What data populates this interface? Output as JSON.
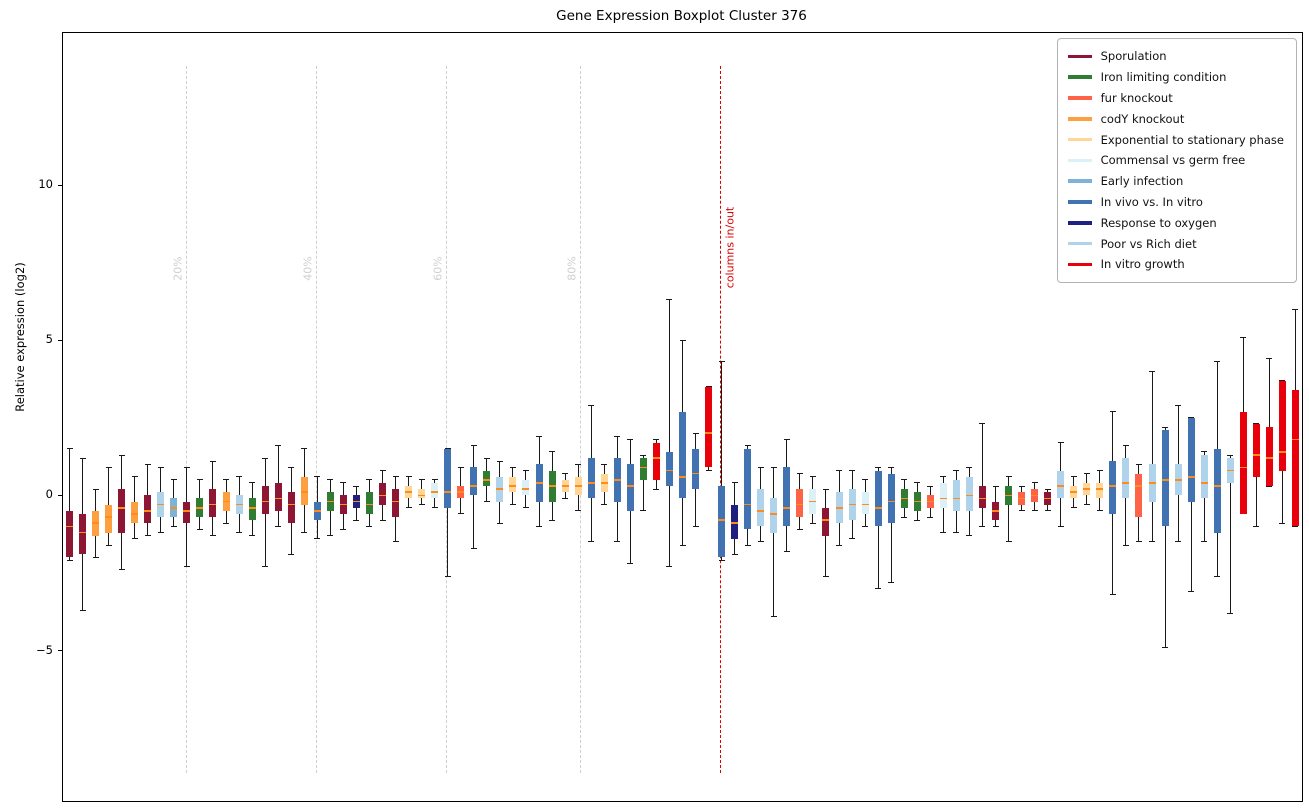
{
  "title": "Gene Expression Boxplot Cluster 376",
  "chart_data": {
    "type": "boxplot",
    "title": "Gene Expression Boxplot Cluster 376",
    "xlabel": "",
    "ylabel": "Relative expression (log2)",
    "ylim": [
      -9.85,
      14.9
    ],
    "yticks": [
      {
        "value": 10,
        "label": "10"
      },
      {
        "value": 5,
        "label": "5"
      },
      {
        "value": 0,
        "label": "0"
      },
      {
        "value": -5,
        "label": "−5"
      }
    ],
    "grid": false,
    "legend_position": "upper right",
    "median_color": "#ff8c1a",
    "groups": [
      {
        "name": "Sporulation",
        "color": "#8E1635"
      },
      {
        "name": "Iron limiting condition",
        "color": "#2E7D32"
      },
      {
        "name": "fur knockout",
        "color": "#FF6347"
      },
      {
        "name": "codY knockout",
        "color": "#FFA040"
      },
      {
        "name": "Exponential to stationary phase",
        "color": "#FFD696"
      },
      {
        "name": "Commensal vs germ free",
        "color": "#DCF0F7"
      },
      {
        "name": "Early infection",
        "color": "#7FB3D5"
      },
      {
        "name": "In vivo vs. In vitro",
        "color": "#4173B3"
      },
      {
        "name": "Response to oxygen",
        "color": "#1F2080"
      },
      {
        "name": "Poor vs Rich diet",
        "color": "#AFD3EA"
      },
      {
        "name": "In vitro growth",
        "color": "#E8000B"
      }
    ],
    "percent_lines": [
      {
        "label": "20%",
        "frac": 0.099,
        "color": "#cfcfcf"
      },
      {
        "label": "40%",
        "frac": 0.204,
        "color": "#cfcfcf"
      },
      {
        "label": "60%",
        "frac": 0.309,
        "color": "#cfcfcf"
      },
      {
        "label": "80%",
        "frac": 0.417,
        "color": "#cfcfcf"
      }
    ],
    "marker_line": {
      "label": "columns in/out",
      "frac": 0.53,
      "color": "#dd0000"
    },
    "box_columns": [
      "group_index",
      "whisker_low",
      "q1",
      "median",
      "q3",
      "whisker_high"
    ],
    "boxes": [
      [
        0,
        -2.1,
        -2.0,
        -1.0,
        -0.5,
        1.5
      ],
      [
        0,
        -3.7,
        -1.9,
        -1.2,
        -0.6,
        1.2
      ],
      [
        3,
        -2.0,
        -1.3,
        -0.9,
        -0.5,
        0.2
      ],
      [
        3,
        -1.6,
        -1.2,
        -0.7,
        -0.3,
        0.9
      ],
      [
        0,
        -2.4,
        -1.2,
        -0.4,
        0.2,
        1.3
      ],
      [
        3,
        -1.4,
        -0.9,
        -0.6,
        -0.2,
        0.6
      ],
      [
        0,
        -1.3,
        -0.9,
        -0.5,
        0.0,
        1.0
      ],
      [
        9,
        -1.2,
        -0.7,
        -0.3,
        0.1,
        0.9
      ],
      [
        6,
        -1.0,
        -0.7,
        -0.4,
        -0.1,
        0.5
      ],
      [
        0,
        -2.3,
        -0.9,
        -0.5,
        -0.2,
        0.9
      ],
      [
        1,
        -1.1,
        -0.7,
        -0.4,
        -0.1,
        0.5
      ],
      [
        0,
        -1.3,
        -0.7,
        -0.3,
        0.2,
        1.1
      ],
      [
        3,
        -0.9,
        -0.5,
        -0.2,
        0.1,
        0.5
      ],
      [
        9,
        -1.2,
        -0.6,
        -0.3,
        0.0,
        0.6
      ],
      [
        1,
        -1.3,
        -0.8,
        -0.4,
        -0.1,
        0.4
      ],
      [
        0,
        -2.3,
        -0.6,
        -0.2,
        0.3,
        1.2
      ],
      [
        0,
        -1.0,
        -0.5,
        -0.1,
        0.4,
        1.6
      ],
      [
        0,
        -1.9,
        -0.9,
        -0.3,
        0.1,
        0.9
      ],
      [
        3,
        -1.2,
        -0.3,
        0.1,
        0.6,
        1.5
      ],
      [
        7,
        -1.4,
        -0.8,
        -0.5,
        -0.2,
        0.6
      ],
      [
        1,
        -1.3,
        -0.5,
        -0.2,
        0.1,
        0.5
      ],
      [
        0,
        -1.1,
        -0.6,
        -0.3,
        0.0,
        0.4
      ],
      [
        8,
        -0.8,
        -0.4,
        -0.2,
        0.0,
        0.3
      ],
      [
        1,
        -1.0,
        -0.6,
        -0.3,
        0.1,
        0.5
      ],
      [
        0,
        -0.8,
        -0.3,
        0.0,
        0.4,
        0.8
      ],
      [
        0,
        -1.5,
        -0.7,
        -0.2,
        0.2,
        0.6
      ],
      [
        4,
        -0.4,
        -0.1,
        0.1,
        0.3,
        0.6
      ],
      [
        4,
        -0.3,
        -0.1,
        0.0,
        0.2,
        0.5
      ],
      [
        5,
        -0.4,
        -0.1,
        0.1,
        0.4,
        0.5
      ],
      [
        7,
        -2.6,
        -0.4,
        0.1,
        1.5,
        1.5
      ],
      [
        2,
        -0.6,
        -0.1,
        0.1,
        0.3,
        0.9
      ],
      [
        7,
        -1.7,
        0.0,
        0.3,
        0.9,
        1.6
      ],
      [
        1,
        -0.2,
        0.3,
        0.5,
        0.8,
        1.2
      ],
      [
        9,
        -0.9,
        -0.2,
        0.2,
        0.6,
        1.1
      ],
      [
        4,
        -0.3,
        0.1,
        0.3,
        0.6,
        0.9
      ],
      [
        5,
        -0.4,
        0.0,
        0.2,
        0.5,
        0.8
      ],
      [
        7,
        -1.0,
        -0.2,
        0.4,
        1.0,
        1.9
      ],
      [
        1,
        -0.8,
        -0.2,
        0.3,
        0.8,
        1.4
      ],
      [
        4,
        -0.1,
        0.1,
        0.3,
        0.5,
        0.7
      ],
      [
        4,
        -0.5,
        0.0,
        0.3,
        0.6,
        1.0
      ],
      [
        7,
        -1.5,
        -0.1,
        0.4,
        1.2,
        2.9
      ],
      [
        4,
        -0.3,
        0.1,
        0.4,
        0.7,
        1.0
      ],
      [
        7,
        -1.5,
        -0.2,
        0.5,
        1.2,
        1.9
      ],
      [
        7,
        -2.2,
        -0.5,
        0.3,
        1.0,
        1.8
      ],
      [
        1,
        -0.5,
        0.5,
        0.9,
        1.2,
        1.3
      ],
      [
        10,
        0.2,
        0.5,
        1.2,
        1.7,
        1.8
      ],
      [
        7,
        -2.3,
        0.3,
        0.8,
        1.4,
        6.3
      ],
      [
        7,
        -1.6,
        -0.1,
        0.6,
        2.7,
        5.0
      ],
      [
        7,
        -1.0,
        0.2,
        0.7,
        1.5,
        2.0
      ],
      [
        10,
        0.8,
        0.9,
        2.0,
        3.5,
        3.5
      ],
      [
        7,
        -2.1,
        -2.0,
        -0.8,
        0.3,
        4.3
      ],
      [
        8,
        -1.9,
        -1.4,
        -0.9,
        -0.3,
        0.4
      ],
      [
        7,
        -1.6,
        -1.1,
        -0.3,
        1.5,
        1.6
      ],
      [
        9,
        -1.5,
        -1.0,
        -0.5,
        0.2,
        0.9
      ],
      [
        9,
        -3.9,
        -1.2,
        -0.6,
        -0.1,
        0.9
      ],
      [
        7,
        -1.8,
        -1.0,
        -0.4,
        0.9,
        1.8
      ],
      [
        2,
        -1.1,
        -0.7,
        -0.3,
        0.2,
        0.7
      ],
      [
        5,
        -0.9,
        -0.6,
        -0.2,
        0.2,
        0.6
      ],
      [
        0,
        -2.6,
        -1.3,
        -0.8,
        -0.4,
        0.2
      ],
      [
        9,
        -1.6,
        -0.9,
        -0.4,
        0.1,
        0.8
      ],
      [
        9,
        -1.4,
        -0.8,
        -0.3,
        0.2,
        0.8
      ],
      [
        5,
        -1.0,
        -0.6,
        -0.3,
        0.1,
        0.5
      ],
      [
        7,
        -3.0,
        -1.0,
        -0.4,
        0.8,
        0.9
      ],
      [
        7,
        -2.8,
        -0.9,
        -0.2,
        0.7,
        0.9
      ],
      [
        1,
        -0.7,
        -0.4,
        -0.1,
        0.2,
        0.5
      ],
      [
        1,
        -0.8,
        -0.5,
        -0.2,
        0.1,
        0.4
      ],
      [
        2,
        -0.7,
        -0.4,
        -0.2,
        0.0,
        0.3
      ],
      [
        5,
        -1.2,
        -0.4,
        -0.1,
        0.4,
        0.6
      ],
      [
        9,
        -1.2,
        -0.5,
        -0.1,
        0.5,
        0.8
      ],
      [
        9,
        -1.3,
        -0.5,
        0.0,
        0.6,
        0.9
      ],
      [
        0,
        -1.0,
        -0.4,
        -0.1,
        0.3,
        2.3
      ],
      [
        0,
        -1.0,
        -0.8,
        -0.5,
        -0.2,
        0.3
      ],
      [
        1,
        -1.5,
        -0.3,
        0.0,
        0.3,
        0.6
      ],
      [
        2,
        -0.5,
        -0.3,
        -0.1,
        0.1,
        0.3
      ],
      [
        2,
        -0.5,
        -0.2,
        0.0,
        0.2,
        0.4
      ],
      [
        0,
        -0.5,
        -0.3,
        -0.1,
        0.1,
        0.2
      ],
      [
        9,
        -1.0,
        -0.1,
        0.3,
        0.8,
        1.7
      ],
      [
        4,
        -0.4,
        -0.1,
        0.1,
        0.3,
        0.6
      ],
      [
        4,
        -0.3,
        0.0,
        0.2,
        0.4,
        0.7
      ],
      [
        4,
        -0.5,
        -0.1,
        0.2,
        0.4,
        0.8
      ],
      [
        7,
        -3.2,
        -0.6,
        0.3,
        1.1,
        2.7
      ],
      [
        9,
        -1.6,
        -0.1,
        0.4,
        1.2,
        1.6
      ],
      [
        2,
        -1.5,
        -0.7,
        0.3,
        0.7,
        1.0
      ],
      [
        9,
        -1.5,
        -0.2,
        0.4,
        1.0,
        4.0
      ],
      [
        7,
        -4.9,
        -1.0,
        0.5,
        2.1,
        2.2
      ],
      [
        9,
        -1.5,
        0.0,
        0.5,
        1.0,
        2.9
      ],
      [
        7,
        -3.1,
        -0.2,
        0.6,
        2.5,
        2.5
      ],
      [
        9,
        -1.5,
        -0.1,
        0.4,
        1.3,
        1.4
      ],
      [
        7,
        -2.6,
        -1.2,
        0.3,
        1.5,
        4.3
      ],
      [
        9,
        -3.8,
        0.4,
        0.8,
        1.2,
        1.3
      ],
      [
        10,
        -0.6,
        -0.6,
        0.9,
        2.7,
        5.1
      ],
      [
        10,
        -1.0,
        0.6,
        1.3,
        2.3,
        2.3
      ],
      [
        10,
        0.3,
        0.3,
        1.2,
        2.2,
        4.4
      ],
      [
        10,
        -0.9,
        0.8,
        1.4,
        3.7,
        3.7
      ],
      [
        10,
        -1.0,
        -1.0,
        1.8,
        3.4,
        6.0
      ]
    ]
  }
}
